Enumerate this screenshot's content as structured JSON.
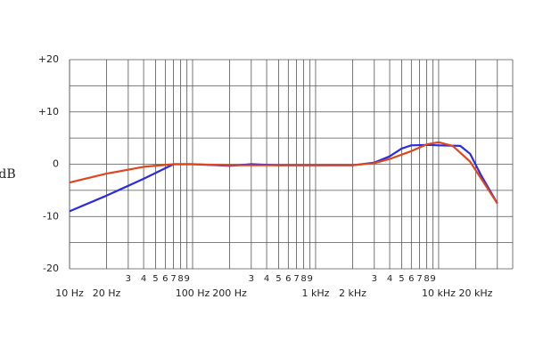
{
  "chart_data": {
    "type": "line",
    "y_label": "dB",
    "log_x": true,
    "grid": true,
    "xlim": [
      10,
      40000
    ],
    "ylim": [
      -20,
      20
    ],
    "xticks": [
      {
        "value": 10,
        "label": "10 Hz"
      },
      {
        "value": 20,
        "label": "20 Hz"
      },
      {
        "value": 30,
        "label": "3"
      },
      {
        "value": 40,
        "label": "4"
      },
      {
        "value": 50,
        "label": "5"
      },
      {
        "value": 60,
        "label": "6"
      },
      {
        "value": 70,
        "label": "7"
      },
      {
        "value": 80,
        "label": "8"
      },
      {
        "value": 90,
        "label": "9"
      },
      {
        "value": 100,
        "label": "100 Hz"
      },
      {
        "value": 200,
        "label": "200 Hz"
      },
      {
        "value": 300,
        "label": "3"
      },
      {
        "value": 400,
        "label": "4"
      },
      {
        "value": 500,
        "label": "5"
      },
      {
        "value": 600,
        "label": "6"
      },
      {
        "value": 700,
        "label": "7"
      },
      {
        "value": 800,
        "label": "8"
      },
      {
        "value": 900,
        "label": "9"
      },
      {
        "value": 1000,
        "label": "1 kHz"
      },
      {
        "value": 2000,
        "label": "2 kHz"
      },
      {
        "value": 3000,
        "label": "3"
      },
      {
        "value": 4000,
        "label": "4"
      },
      {
        "value": 5000,
        "label": "5"
      },
      {
        "value": 6000,
        "label": "6"
      },
      {
        "value": 7000,
        "label": "7"
      },
      {
        "value": 8000,
        "label": "8"
      },
      {
        "value": 9000,
        "label": "9"
      },
      {
        "value": 10000,
        "label": "10 kHz"
      },
      {
        "value": 20000,
        "label": "20 kHz"
      }
    ],
    "xminor": [
      30000
    ],
    "yticks": [
      {
        "value": 20,
        "label": "+20"
      },
      {
        "value": 10,
        "label": "+10"
      },
      0,
      -10,
      -20
    ],
    "yminor": [
      15,
      5,
      -5,
      -15
    ],
    "series": [
      {
        "color": "#2b2be0",
        "x": [
          10,
          20,
          40,
          70,
          100,
          200,
          300,
          500,
          1000,
          2000,
          3000,
          4000,
          5000,
          6000,
          8000,
          10000,
          15000,
          18000,
          22000,
          30000
        ],
        "values": [
          -9,
          -6,
          -2.8,
          0,
          0,
          -0.3,
          0,
          -0.2,
          -0.2,
          -0.2,
          0.3,
          1.5,
          3,
          3.6,
          3.7,
          3.6,
          3.5,
          2,
          -2,
          -7.5
        ]
      },
      {
        "color": "#e0461a",
        "x": [
          10,
          20,
          40,
          70,
          100,
          200,
          500,
          1000,
          2000,
          3000,
          4000,
          6000,
          8000,
          10000,
          13000,
          18000,
          24000,
          30000
        ],
        "values": [
          -3.5,
          -1.8,
          -0.5,
          0,
          0,
          -0.2,
          -0.2,
          -0.2,
          -0.2,
          0.2,
          1,
          2.5,
          3.8,
          4.2,
          3.5,
          0.5,
          -4,
          -7.5
        ]
      }
    ]
  }
}
